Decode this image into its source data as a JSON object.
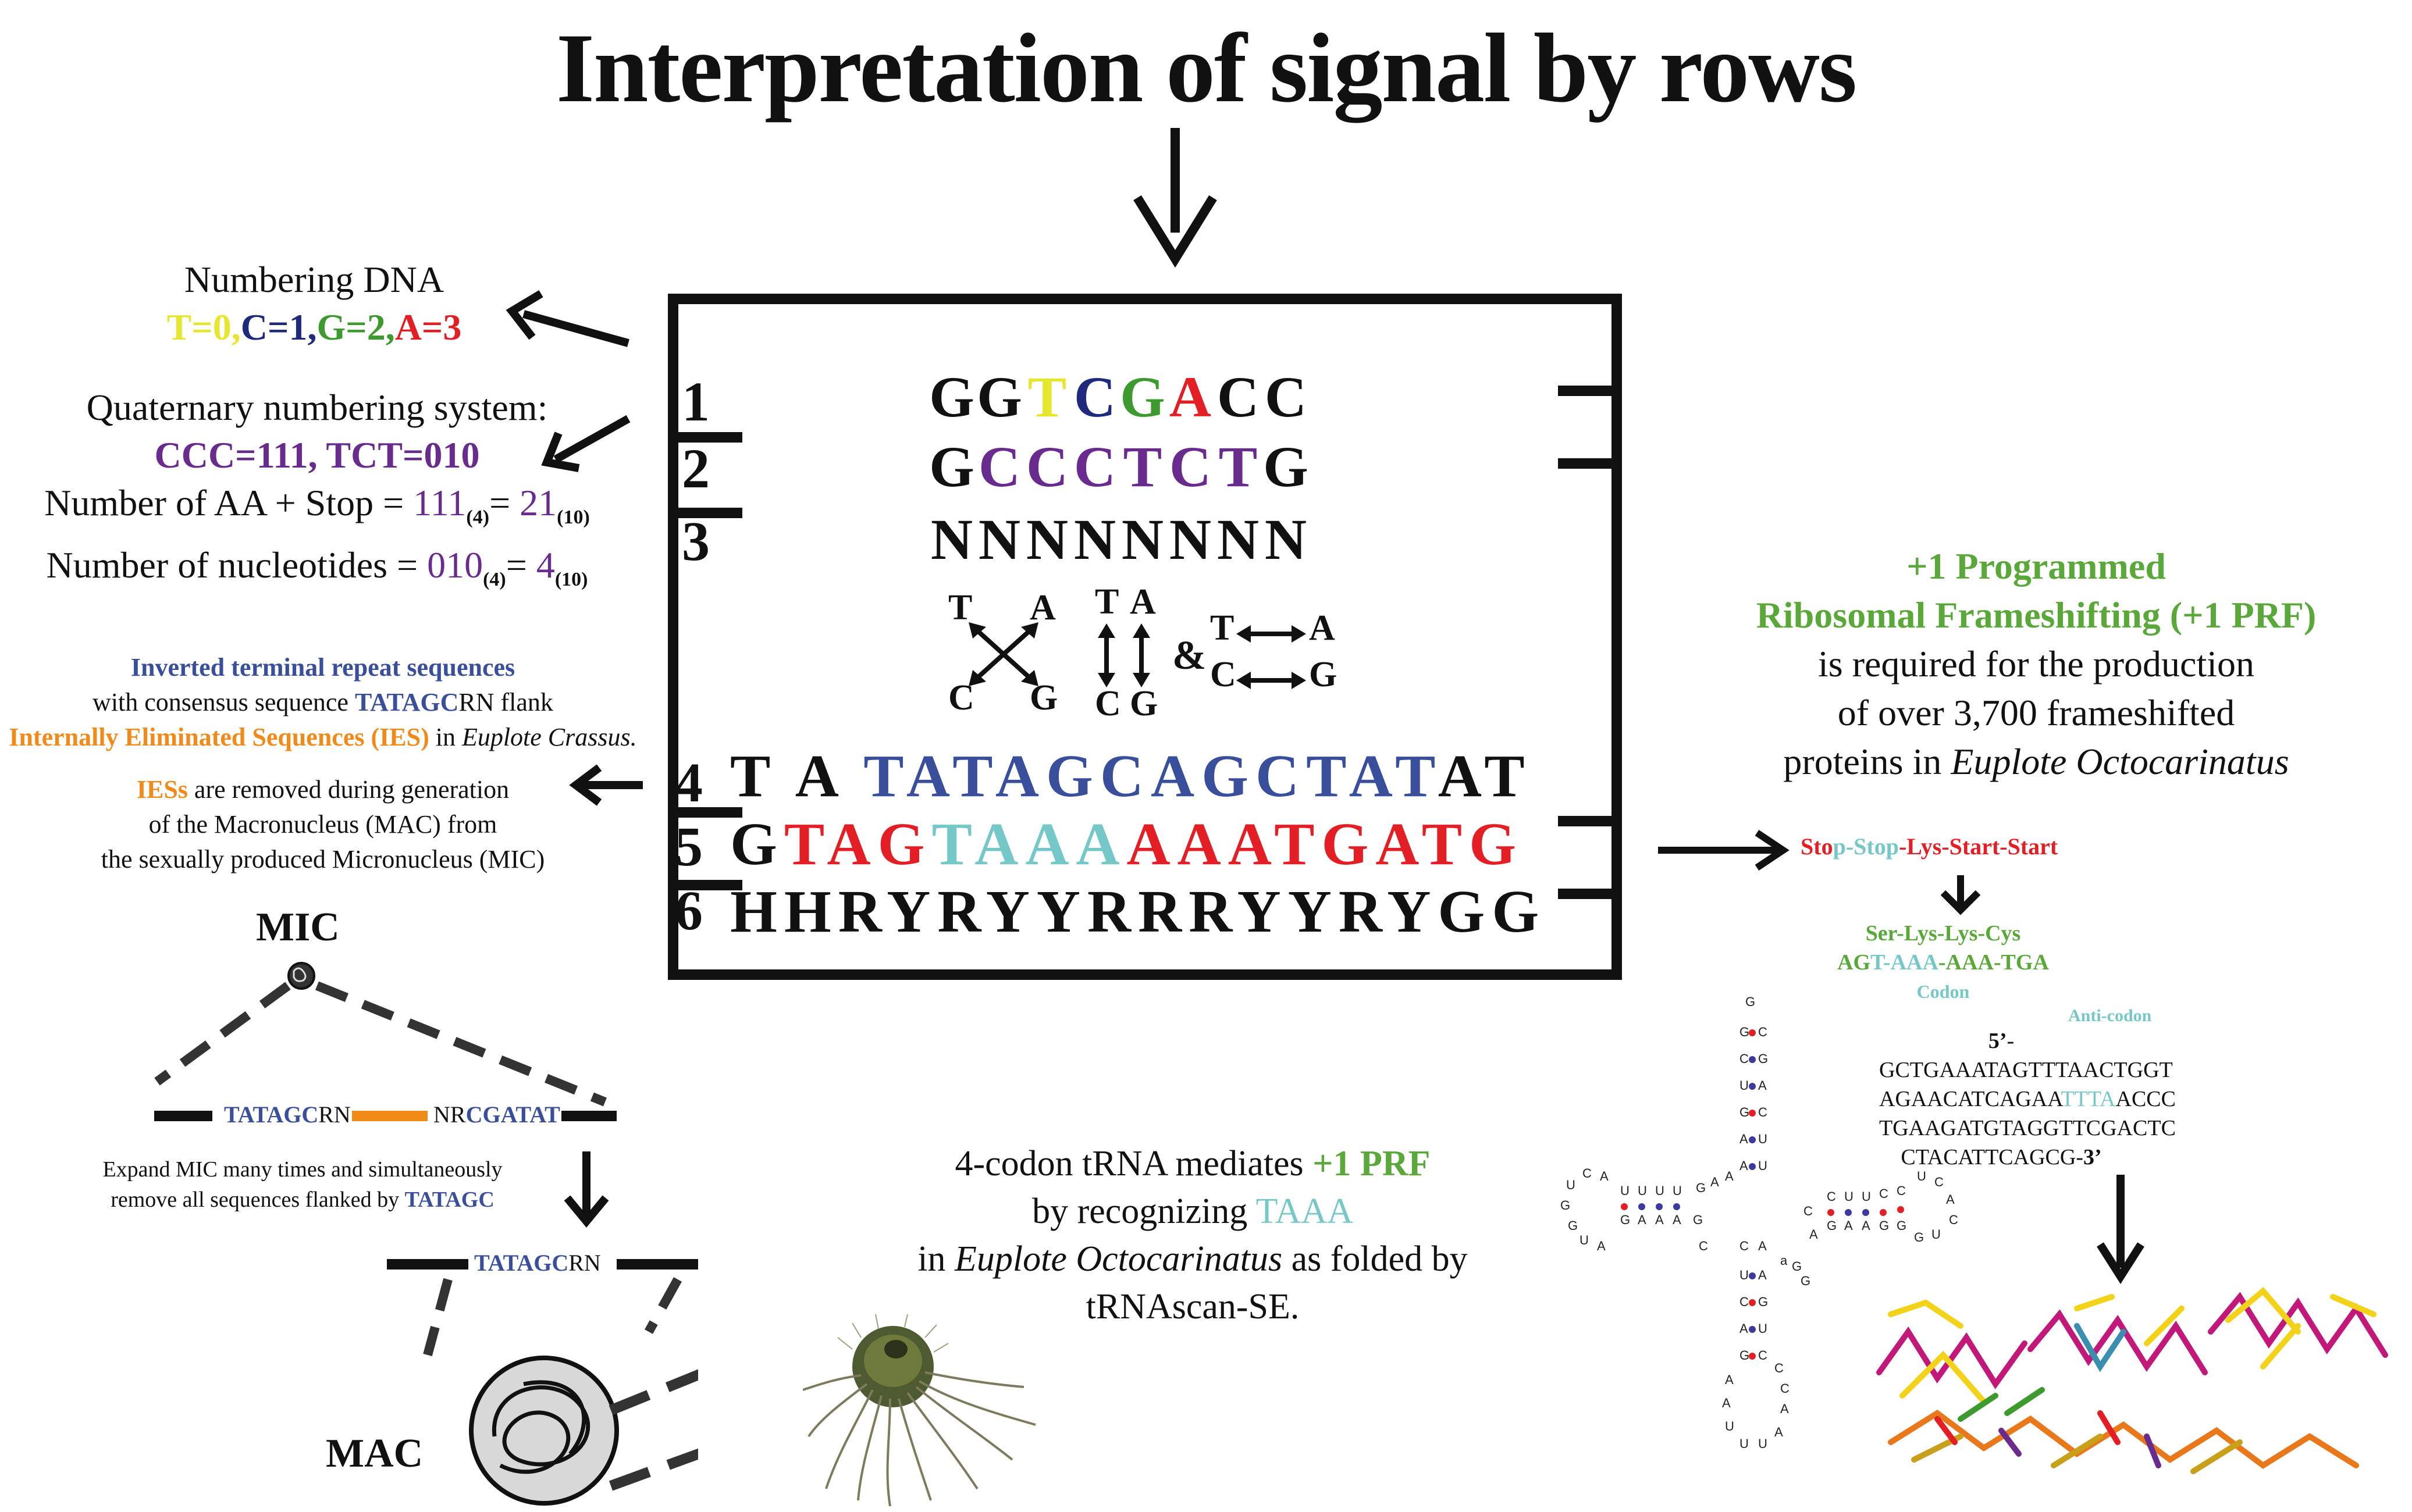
{
  "title": "Interpretation of signal by rows",
  "colors": {
    "T": "#e6e62e",
    "C": "#1f2a7c",
    "G": "#3c9a2f",
    "A": "#e31e24",
    "purple": "#6a2b8e",
    "blue": "#3a4f9c",
    "orange": "#f28a1a",
    "teal": "#76c7c7",
    "green": "#5aa83a",
    "red": "#e31e24"
  },
  "rows": {
    "numbers": [
      "1",
      "2",
      "3",
      "4",
      "5",
      "6"
    ],
    "row1": [
      "G",
      "G",
      "T",
      "C",
      "G",
      "A",
      "C",
      "C"
    ],
    "row2": [
      "G",
      "C",
      "C",
      "C",
      "T",
      "C",
      "T",
      "G"
    ],
    "row3": [
      "N",
      "N",
      "N",
      "N",
      "N",
      "N",
      "N",
      "N"
    ],
    "row4_prefix": "T A ",
    "row4_mid": "TATAGCAGCTAT",
    "row4_suffix": "AT",
    "row5_prefix": "G",
    "row5_tag": "TAG",
    "row5_taaa": "TAAA",
    "row5_rest": "AAATGATG",
    "row6": "HHRYRYYRRRYYRYGG"
  },
  "pairs": {
    "left_T": "T",
    "left_A": "A",
    "left_C": "C",
    "left_G": "G",
    "mid_T": "T",
    "mid_A": "A",
    "mid_C": "C",
    "mid_G": "G",
    "amp": "&",
    "right_T": "T",
    "right_A": "A",
    "right_C": "C",
    "right_G": "G"
  },
  "numbering": {
    "heading": "Numbering DNA",
    "t": "T",
    "t_val": "=0,",
    "c": "C",
    "c_val": "=1,",
    "g": "G",
    "g_val": "=2,",
    "a": "A",
    "a_val": "=3",
    "quaternary": "Quaternary numbering system:",
    "ccc": "CCC=111, TCT=010",
    "aa_label": "Number of AA + Stop = ",
    "aa_v1": "111",
    "aa_b1": "(4)",
    "aa_eq": "= ",
    "aa_v2": "21",
    "aa_b2": "(10)",
    "nt_label": "Number of nucleotides = ",
    "nt_v1": "010",
    "nt_b1": "(4)",
    "nt_eq": "= ",
    "nt_v2": "4",
    "nt_b2": "(10)"
  },
  "ies": {
    "itr": "Inverted terminal repeat sequences",
    "with": "with consensus sequence ",
    "tatagc": "TATAGC",
    "rn_flank": "RN flank",
    "ies_label": "Internally Eliminated Sequences (IES)",
    "in": " in ",
    "species": "Euplote Crassus.",
    "iess": "IESs",
    "removed": " are removed during generation",
    "of_mac": "of the Macronucleus (MAC) from",
    "sexually": "the sexually produced Micronucleus (MIC)"
  },
  "mic_diagram": {
    "mic": "MIC",
    "left_tatagc": "TATAGC",
    "left_rn": "RN",
    "right_nr": "NR",
    "right_cgatat": "CGATAT",
    "expand": "Expand MIC many times and simultaneously",
    "remove": "remove all sequences flanked by ",
    "remove_tatagc": "TATAGC",
    "after_tatagc": "TATAGC",
    "after_rn": "RN",
    "mac": "MAC"
  },
  "prf": {
    "line1": "+1 Programmed",
    "line2": "Ribosomal Frameshifting (+1 PRF)",
    "line3": "is required for the production",
    "line4": "of over 3,700 frameshifted",
    "line5_a": "proteins in ",
    "line5_b": "Euplote Octocarinatus"
  },
  "translation": {
    "sto": "Sto",
    "p_stop": "p-Stop",
    "rest": "-Lys-Start-Start",
    "ser": "Ser-Lys-Lys-Cys",
    "agt": "AG",
    "t_aaa": "T-AAA",
    "aaa_tga": "-AAA-TGA",
    "codon": "Codon",
    "anticodon": "Anti-codon",
    "seq1_a": "5’",
    "seq1_b": "-GCTGAAATAGTTTAACTGGT",
    "seq2_a": "AGAACATCAGAA",
    "seq2_b": "TTTA",
    "seq2_c": "ACCC",
    "seq3": "TGAAGATGTAGGTTCGACTC",
    "seq4_a": "CTACATTCAGCG-",
    "seq4_b": "3’"
  },
  "trna_caption": {
    "l1_a": "4-codon tRNA mediates ",
    "l1_b": "+1 PRF",
    "l2_a": "by recognizing ",
    "l2_b": "TAAA",
    "l3_a": "in ",
    "l3_b": "Euplote Octocarinatus",
    "l3_c": " as folded by",
    "l4": "tRNAscan-SE."
  },
  "trna_letters": {
    "top_stem_left": [
      "G",
      "C",
      "U",
      "G",
      "A",
      "A",
      "A"
    ],
    "top_stem_right": [
      "C",
      "G",
      "A",
      "C",
      "U",
      "U",
      "A"
    ],
    "top_loop": "G"
  }
}
